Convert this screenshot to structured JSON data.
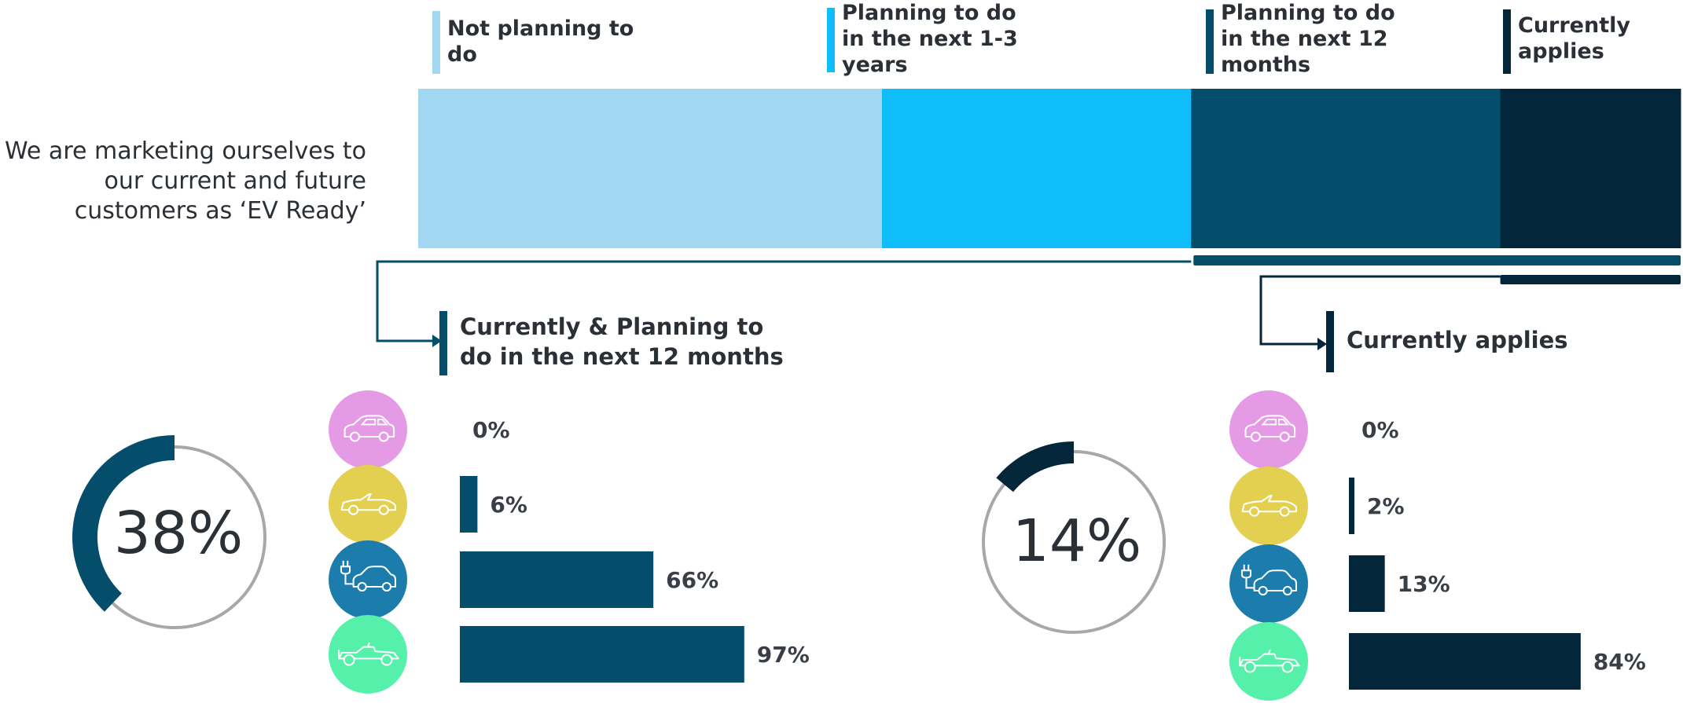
{
  "chart_data": [
    {
      "type": "bar",
      "orientation": "horizontal-stacked",
      "categories": [
        "We are marketing ourselves to our current and future customers as ‘EV Ready’"
      ],
      "series": [
        {
          "name": "Not planning to do",
          "values": [
            0.36
          ],
          "color": "#a3d8f2"
        },
        {
          "name": "Planning to do in the next 1-3 years",
          "values": [
            0.24
          ],
          "color": "#10bdfb"
        },
        {
          "name": "Planning to do in the next 12 months",
          "values": [
            0.24
          ],
          "color": "#044d6b"
        },
        {
          "name": "Currently applies",
          "values": [
            0.14
          ],
          "color": "#03263a"
        }
      ],
      "legend_position": "top"
    },
    {
      "type": "bar",
      "orientation": "horizontal",
      "title": "Currently & Planning to do in the next 12 months",
      "total": 0.38,
      "total_label": "38%",
      "values": [
        0,
        0.06,
        0.66,
        0.97
      ],
      "labels": [
        "0%",
        "6%",
        "66%",
        "97%"
      ],
      "icons": [
        "sedan-icon",
        "convertible-icon",
        "electric-car-icon",
        "race-car-icon"
      ],
      "color": "#044d6b"
    },
    {
      "type": "bar",
      "orientation": "horizontal",
      "title": "Currently applies",
      "total": 0.14,
      "total_label": "14%",
      "values": [
        0,
        0.02,
        0.13,
        0.84
      ],
      "labels": [
        "0%",
        "2%",
        "13%",
        "84%"
      ],
      "icons": [
        "sedan-icon",
        "convertible-icon",
        "electric-car-icon",
        "race-car-icon"
      ],
      "color": "#03263a"
    }
  ],
  "icon_colors": [
    "#e59ae6",
    "#e3cf50",
    "#1c7dad",
    "#55f0aa"
  ],
  "ring_track_color": "#a8a8a8"
}
